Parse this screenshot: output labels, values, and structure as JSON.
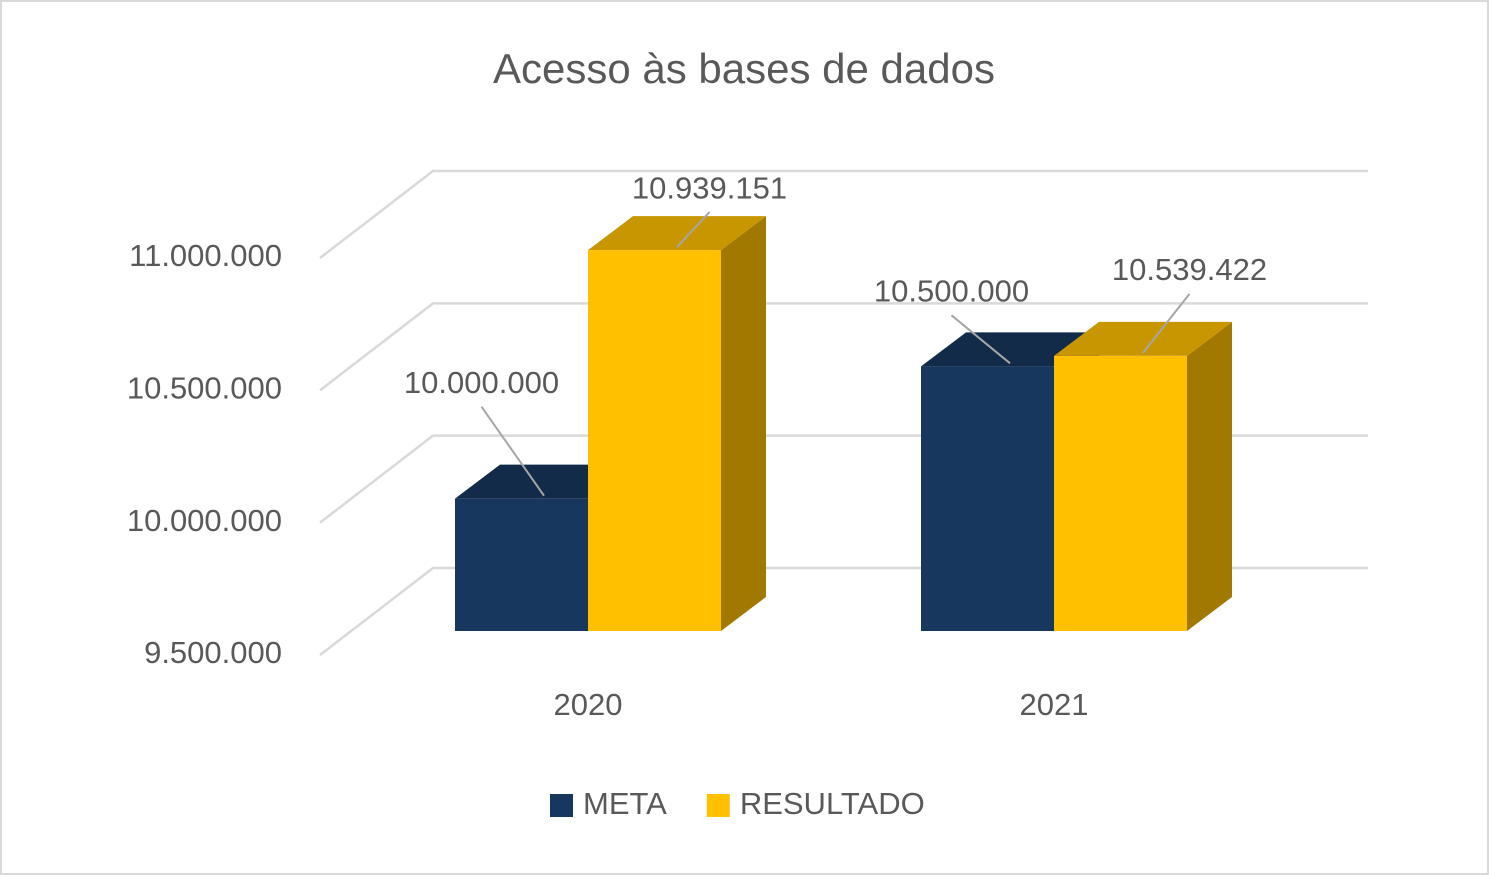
{
  "chart_data": {
    "type": "bar3d",
    "title": "Acesso às bases de dados",
    "categories": [
      "2020",
      "2021"
    ],
    "series": [
      {
        "name": "META",
        "color": "#17375e",
        "values": [
          10000000,
          10500000
        ],
        "value_labels": [
          "10.000.000",
          "10.500.000"
        ]
      },
      {
        "name": "RESULTADO",
        "color": "#ffc000",
        "values": [
          10939151,
          10539422
        ],
        "value_labels": [
          "10.939.151",
          "10.539.422"
        ]
      }
    ],
    "ylim": [
      9500000,
      11000000
    ],
    "yticks": [
      {
        "value": 9500000,
        "label": "9.500.000"
      },
      {
        "value": 10000000,
        "label": "10.000.000"
      },
      {
        "value": 10500000,
        "label": "10.500.000"
      },
      {
        "value": 11000000,
        "label": "11.000.000"
      }
    ],
    "grid": true,
    "legend": "bottom"
  }
}
